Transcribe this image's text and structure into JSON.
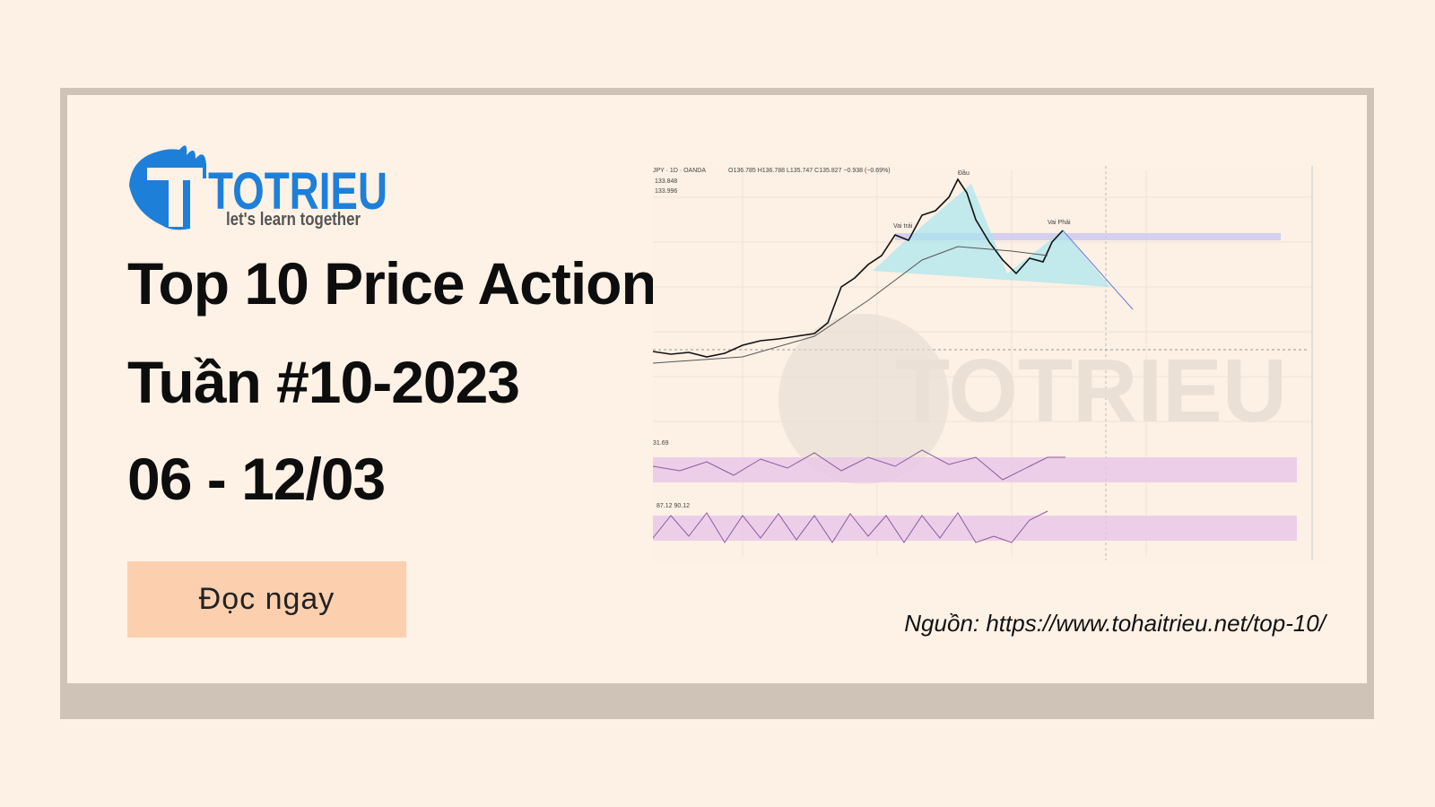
{
  "logo": {
    "name": "TOTRIEU",
    "tagline": "let's learn together"
  },
  "headline": {
    "line1": "Top 10 Price Action",
    "line2": "Tuần #10-2023",
    "line3": "06 - 12/03"
  },
  "button": {
    "label": "Đọc ngay"
  },
  "source": "Nguồn: https://www.tohaitrieu.net/top-10/",
  "chart_image": {
    "symbol": "JPY · 1D · OANDA",
    "ohlc": "O136.785 H136.788 L135.747 C135.827 −0.938 (−0.69%)",
    "line_a": "133.848",
    "line_b": "133.996",
    "rsi": "31.69",
    "stoch": "87.12  90.12",
    "tag_head": "Đầu",
    "tag_left": "Vai trái",
    "tag_right": "Vai Phải"
  }
}
